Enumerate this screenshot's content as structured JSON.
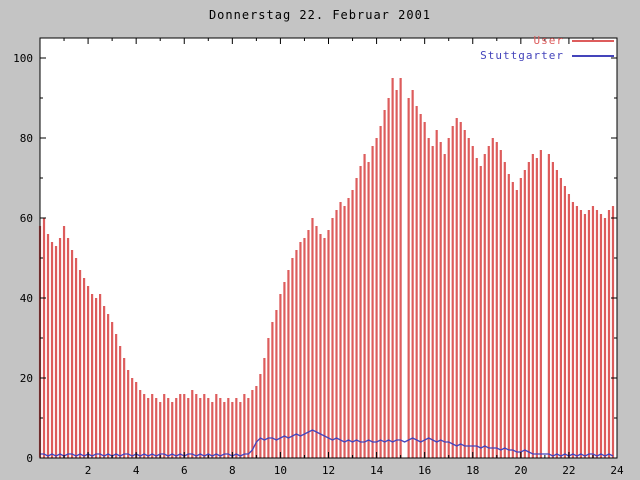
{
  "title": "Donnerstag 22. Februar 2001",
  "colors": {
    "background": "#c4c4c4",
    "plot_background": "#ffffff",
    "frame": "#000000",
    "user": "#dd5c5c",
    "stuttgarter": "#4444bb"
  },
  "chart_data": {
    "type": "bar",
    "subtype": "impulses-plus-line",
    "title": "Donnerstag 22. Februar 2001",
    "xlabel": "",
    "ylabel": "",
    "x_unit": "hour of day",
    "xlim": [
      0,
      24
    ],
    "ylim": [
      0,
      105
    ],
    "x_ticks": [
      2,
      4,
      6,
      8,
      10,
      12,
      14,
      16,
      18,
      20,
      22,
      24
    ],
    "x_minor_ticks": [
      1,
      3,
      5,
      7,
      9,
      11,
      13,
      15,
      17,
      19,
      21,
      23
    ],
    "y_ticks": [
      0,
      20,
      40,
      60,
      80,
      100
    ],
    "y_minor_ticks": [
      10,
      30,
      50,
      70,
      90
    ],
    "grid": false,
    "legend_position": "top-right",
    "x_step_minutes": 10,
    "series": [
      {
        "name": "User",
        "style": "impulses",
        "color": "#dd5c5c",
        "values": [
          58,
          60,
          56,
          54,
          53,
          55,
          58,
          55,
          52,
          50,
          47,
          45,
          43,
          41,
          40,
          41,
          38,
          36,
          34,
          31,
          28,
          25,
          22,
          20,
          19,
          17,
          16,
          15,
          16,
          15,
          14,
          16,
          15,
          14,
          15,
          16,
          16,
          15,
          17,
          16,
          15,
          16,
          15,
          14,
          16,
          15,
          14,
          15,
          14,
          15,
          14,
          16,
          15,
          17,
          18,
          21,
          25,
          30,
          34,
          37,
          41,
          44,
          47,
          50,
          52,
          54,
          55,
          57,
          60,
          58,
          56,
          55,
          57,
          60,
          62,
          64,
          63,
          65,
          67,
          70,
          73,
          76,
          74,
          78,
          80,
          83,
          87,
          90,
          95,
          92,
          95,
          null,
          90,
          92,
          88,
          86,
          84,
          80,
          78,
          82,
          79,
          76,
          80,
          83,
          85,
          84,
          82,
          80,
          78,
          75,
          73,
          76,
          78,
          80,
          79,
          77,
          74,
          71,
          69,
          67,
          70,
          72,
          74,
          76,
          75,
          77,
          null,
          76,
          74,
          72,
          70,
          68,
          66,
          64,
          63,
          62,
          61,
          62,
          63,
          62,
          61,
          60,
          62,
          63
        ]
      },
      {
        "name": "Stuttgarter",
        "style": "line",
        "color": "#4444bb",
        "values": [
          1,
          1,
          0.5,
          1,
          0.5,
          1,
          0.5,
          1,
          1,
          0.5,
          1,
          0.5,
          1,
          0.5,
          1,
          1,
          0.5,
          1,
          0.5,
          1,
          0.5,
          1,
          1,
          0.5,
          1,
          0.5,
          1,
          0.5,
          1,
          0.5,
          1,
          1,
          0.5,
          1,
          0.5,
          1,
          0.5,
          1,
          1,
          0.5,
          1,
          0.5,
          1,
          0.5,
          1,
          0.5,
          1,
          1,
          0.5,
          1,
          0.5,
          1,
          1,
          2,
          4,
          5,
          4.5,
          5,
          5,
          4.5,
          5,
          5.5,
          5,
          5.5,
          6,
          5.5,
          6,
          6.5,
          7,
          6.5,
          6,
          5.5,
          5,
          4.5,
          5,
          4.5,
          4,
          4.5,
          4,
          4.5,
          4,
          4,
          4.5,
          4,
          4,
          4.5,
          4,
          4.5,
          4,
          4.5,
          4.5,
          4,
          4.5,
          5,
          4.5,
          4,
          4.5,
          5,
          4.5,
          4,
          4.5,
          4,
          4,
          3.5,
          3,
          3.5,
          3,
          3,
          3,
          3,
          2.5,
          3,
          2.5,
          2.5,
          2.5,
          2,
          2.5,
          2,
          2,
          1.5,
          1.5,
          2,
          1.5,
          1,
          1,
          1,
          1,
          1,
          0.5,
          1,
          0.5,
          1,
          0.5,
          1,
          0.5,
          1,
          0.5,
          1,
          1,
          0.5,
          1,
          0.5,
          1,
          0.5
        ]
      }
    ]
  },
  "legend": {
    "items": [
      "User",
      "Stuttgarter"
    ]
  }
}
